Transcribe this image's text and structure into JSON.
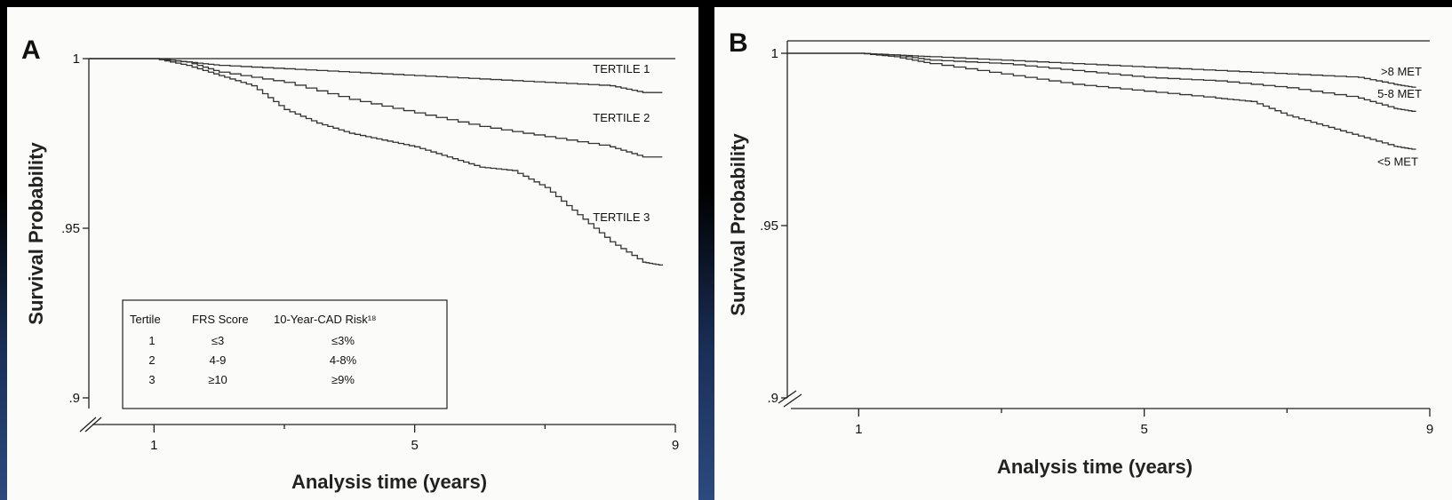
{
  "chart_data": [
    {
      "type": "line",
      "panel_label": "A",
      "xlabel": "Analysis time (years)",
      "ylabel": "Survival Probability",
      "xticks": [
        "1",
        "5",
        "9"
      ],
      "yticks": [
        "1",
        ".95",
        ".9"
      ],
      "xlim": [
        0,
        9
      ],
      "ylim": [
        0.9,
        1.0
      ],
      "series": [
        {
          "name": "TERTILE 1",
          "x": [
            0,
            1,
            1.5,
            2,
            3,
            4,
            5,
            6,
            7,
            8,
            8.5,
            8.8
          ],
          "y": [
            1.0,
            1.0,
            0.999,
            0.998,
            0.997,
            0.996,
            0.995,
            0.994,
            0.993,
            0.992,
            0.99,
            0.99
          ]
        },
        {
          "name": "TERTILE 2",
          "x": [
            0,
            1,
            1.5,
            2,
            3,
            4,
            5,
            6,
            7,
            8,
            8.5,
            8.8
          ],
          "y": [
            1.0,
            1.0,
            0.999,
            0.996,
            0.993,
            0.988,
            0.984,
            0.98,
            0.977,
            0.974,
            0.971,
            0.971
          ]
        },
        {
          "name": "TERTILE 3",
          "x": [
            0,
            1,
            1.5,
            2,
            2.5,
            3,
            3.5,
            4,
            4.5,
            5,
            5.5,
            6,
            6.5,
            7,
            7.5,
            8,
            8.5,
            8.8
          ],
          "y": [
            1.0,
            1.0,
            0.998,
            0.995,
            0.992,
            0.985,
            0.981,
            0.978,
            0.976,
            0.974,
            0.971,
            0.968,
            0.967,
            0.962,
            0.954,
            0.946,
            0.94,
            0.939
          ]
        }
      ],
      "table": {
        "headers": [
          "Tertile",
          "FRS Score",
          "10-Year-CAD Risk¹⁸"
        ],
        "rows": [
          [
            "1",
            "≤3",
            "≤3%"
          ],
          [
            "2",
            "4-9",
            "4-8%"
          ],
          [
            "3",
            "≥10",
            "≥9%"
          ]
        ]
      }
    },
    {
      "type": "line",
      "panel_label": "B",
      "xlabel": "Analysis time (years)",
      "ylabel": "Survival Probability",
      "xticks": [
        "1",
        "5",
        "9"
      ],
      "yticks": [
        "1",
        ".95",
        ".9"
      ],
      "xlim": [
        0,
        9
      ],
      "ylim": [
        0.9,
        1.0
      ],
      "series": [
        {
          "name": ">8 MET",
          "x": [
            0,
            1,
            1.5,
            2,
            3,
            4,
            5,
            6,
            7,
            8,
            8.5,
            8.8
          ],
          "y": [
            1.0,
            1.0,
            0.9995,
            0.999,
            0.998,
            0.997,
            0.996,
            0.995,
            0.994,
            0.993,
            0.991,
            0.99
          ]
        },
        {
          "name": "5-8 MET",
          "x": [
            0,
            1,
            1.5,
            2,
            3,
            4,
            5,
            6,
            7,
            8,
            8.5,
            8.8
          ],
          "y": [
            1.0,
            1.0,
            0.9995,
            0.998,
            0.997,
            0.995,
            0.993,
            0.992,
            0.99,
            0.987,
            0.984,
            0.983
          ]
        },
        {
          "name": "<5 MET",
          "x": [
            0,
            1,
            1.5,
            2,
            3,
            4,
            5,
            6,
            6.5,
            7,
            7.5,
            8,
            8.5,
            8.8
          ],
          "y": [
            1.0,
            1.0,
            0.999,
            0.997,
            0.994,
            0.991,
            0.989,
            0.987,
            0.986,
            0.982,
            0.979,
            0.976,
            0.973,
            0.972
          ]
        }
      ]
    }
  ]
}
